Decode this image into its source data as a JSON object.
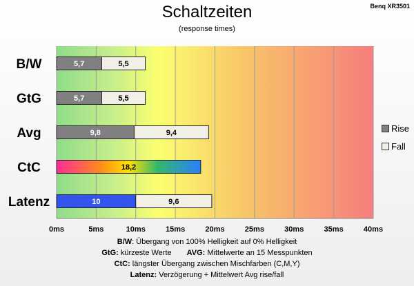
{
  "source_label": "Benq XR3501",
  "chart_data": {
    "type": "bar",
    "orientation": "horizontal",
    "stacked": true,
    "title": "Schaltzeiten",
    "subtitle": "(response times)",
    "categories": [
      "B/W",
      "GtG",
      "Avg",
      "CtC",
      "Latenz"
    ],
    "series": [
      {
        "name": "Rise",
        "values": [
          5.7,
          5.7,
          9.8,
          18.2,
          10
        ],
        "labels": [
          "5,7",
          "5,7",
          "9,8",
          "18,2",
          "10"
        ],
        "color": "#808080"
      },
      {
        "name": "Fall",
        "values": [
          5.5,
          5.5,
          9.4,
          null,
          9.6
        ],
        "labels": [
          "5,5",
          "5,5",
          "9,4",
          "",
          "9,6"
        ],
        "color": "#f2efe6"
      }
    ],
    "special_colors": {
      "CtC": "rainbow",
      "Latenz_rise": "#3355ee"
    },
    "xlim": [
      0,
      40
    ],
    "x_ticks": [
      0,
      5,
      10,
      15,
      20,
      25,
      30,
      35,
      40
    ],
    "x_tick_labels": [
      "0ms",
      "5ms",
      "10ms",
      "15ms",
      "20ms",
      "25ms",
      "30ms",
      "35ms",
      "40ms"
    ],
    "grid": true,
    "legend_position": "right"
  },
  "notes": [
    {
      "label": "B/W",
      "text": ":  Übergang von 100% Helligkeit auf 0% Helligkeit"
    },
    {
      "label": "GtG:",
      "text": " kürzeste  Werte",
      "label2": "AVG:",
      "text2": " Mittelwerte  an 15 Messpunkten"
    },
    {
      "label": "CtC:",
      "text": " längster Übergang  zwischen Mischfarben  (C,M,Y)"
    },
    {
      "label": "Latenz:",
      "text": " Verzögerung  + Mittelwert  Avg rise/fall"
    }
  ]
}
